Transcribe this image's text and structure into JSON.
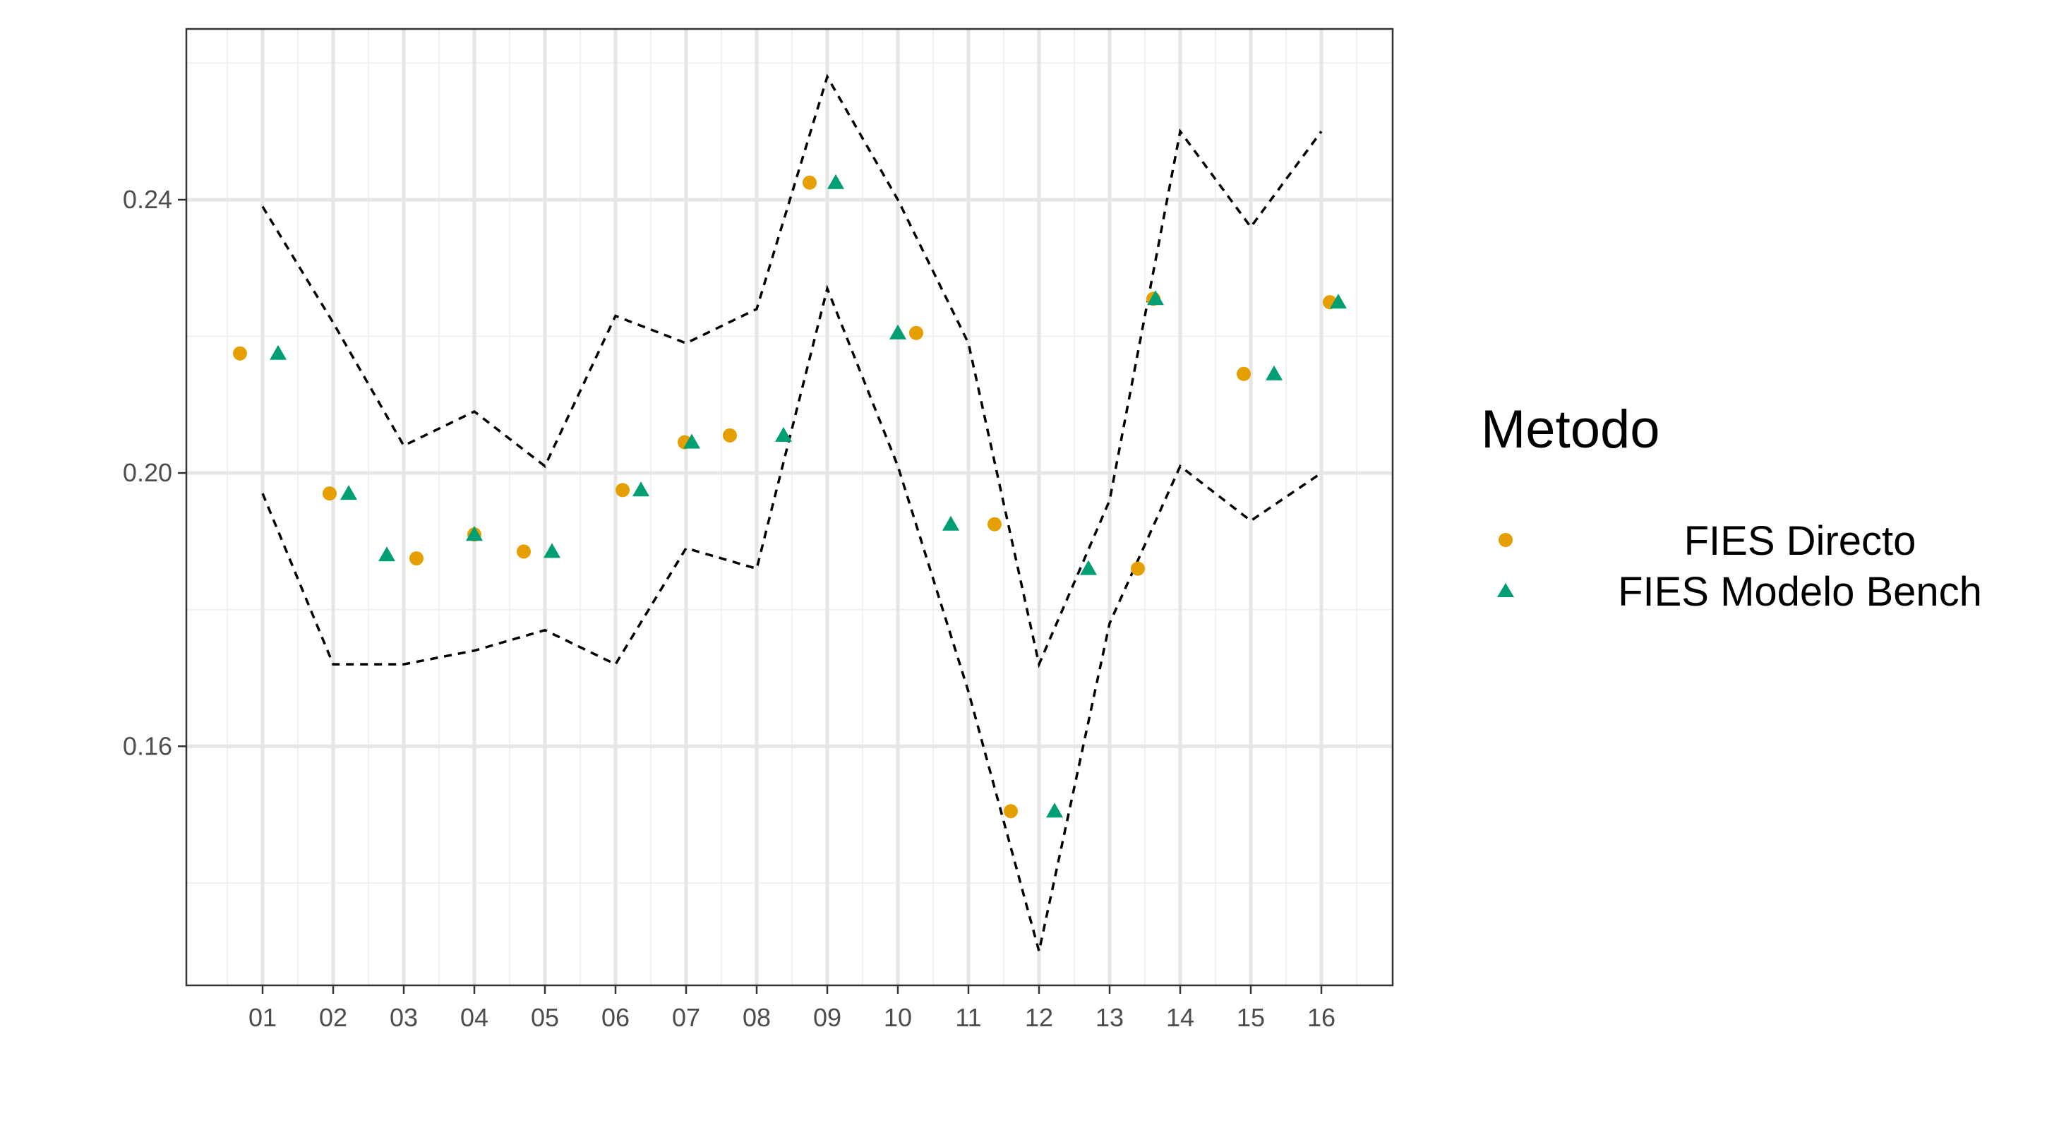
{
  "chart_data": {
    "type": "scatter",
    "title": "",
    "xlabel": "",
    "ylabel": "",
    "categories": [
      "01",
      "02",
      "03",
      "04",
      "05",
      "06",
      "07",
      "08",
      "09",
      "10",
      "11",
      "12",
      "13",
      "14",
      "15",
      "16"
    ],
    "ylim": [
      0.125,
      0.265
    ],
    "yticks": [
      0.16,
      0.2,
      0.24
    ],
    "ytick_labels": [
      "0.16",
      "0.20",
      "0.24"
    ],
    "grid": true,
    "legend": {
      "title": "Metodo",
      "position": "right",
      "entries": [
        {
          "label": "FIES Directo",
          "shape": "circle",
          "color": "#E69F00"
        },
        {
          "label": "FIES Modelo Bench",
          "shape": "triangle",
          "color": "#009E73"
        }
      ]
    },
    "series": [
      {
        "name": "FIES Directo",
        "shape": "circle",
        "color": "#E69F00",
        "points": [
          {
            "x": "01",
            "offset": -0.32,
            "y": 0.2175
          },
          {
            "x": "02",
            "offset": -0.05,
            "y": 0.197
          },
          {
            "x": "03",
            "offset": 0.18,
            "y": 0.1875
          },
          {
            "x": "04",
            "offset": 0.0,
            "y": 0.191
          },
          {
            "x": "05",
            "offset": -0.3,
            "y": 0.1885
          },
          {
            "x": "06",
            "offset": 0.1,
            "y": 0.1975
          },
          {
            "x": "07",
            "offset": -0.02,
            "y": 0.2045
          },
          {
            "x": "08",
            "offset": -0.38,
            "y": 0.2055
          },
          {
            "x": "09",
            "offset": -0.25,
            "y": 0.2425
          },
          {
            "x": "10",
            "offset": 0.26,
            "y": 0.2205
          },
          {
            "x": "11",
            "offset": 0.37,
            "y": 0.1925
          },
          {
            "x": "12",
            "offset": -0.4,
            "y": 0.1505
          },
          {
            "x": "13",
            "offset": 0.4,
            "y": 0.186
          },
          {
            "x": "14",
            "offset": -0.38,
            "y": 0.2255
          },
          {
            "x": "15",
            "offset": -0.1,
            "y": 0.2145
          },
          {
            "x": "16",
            "offset": 0.12,
            "y": 0.225
          }
        ]
      },
      {
        "name": "FIES Modelo Bench",
        "shape": "triangle",
        "color": "#009E73",
        "points": [
          {
            "x": "01",
            "offset": 0.22,
            "y": 0.2175
          },
          {
            "x": "02",
            "offset": 0.22,
            "y": 0.197
          },
          {
            "x": "03",
            "offset": -0.24,
            "y": 0.188
          },
          {
            "x": "04",
            "offset": 0.0,
            "y": 0.191
          },
          {
            "x": "05",
            "offset": 0.1,
            "y": 0.1885
          },
          {
            "x": "06",
            "offset": 0.36,
            "y": 0.1975
          },
          {
            "x": "07",
            "offset": 0.08,
            "y": 0.2045
          },
          {
            "x": "08",
            "offset": 0.38,
            "y": 0.2055
          },
          {
            "x": "09",
            "offset": 0.12,
            "y": 0.2425
          },
          {
            "x": "10",
            "offset": 0.0,
            "y": 0.2205
          },
          {
            "x": "11",
            "offset": -0.25,
            "y": 0.1925
          },
          {
            "x": "12",
            "offset": 0.22,
            "y": 0.1505
          },
          {
            "x": "13",
            "offset": -0.3,
            "y": 0.186
          },
          {
            "x": "14",
            "offset": -0.35,
            "y": 0.2255
          },
          {
            "x": "15",
            "offset": 0.33,
            "y": 0.2145
          },
          {
            "x": "16",
            "offset": 0.24,
            "y": 0.225
          }
        ]
      }
    ],
    "bounds": {
      "upper": [
        0.239,
        0.222,
        0.204,
        0.209,
        0.201,
        0.223,
        0.219,
        0.224,
        0.258,
        0.24,
        0.219,
        0.172,
        0.196,
        0.25,
        0.236,
        0.25
      ],
      "lower": [
        0.197,
        0.172,
        0.172,
        0.174,
        0.177,
        0.172,
        0.189,
        0.186,
        0.227,
        0.201,
        0.168,
        0.13,
        0.178,
        0.201,
        0.193,
        0.2
      ]
    }
  }
}
